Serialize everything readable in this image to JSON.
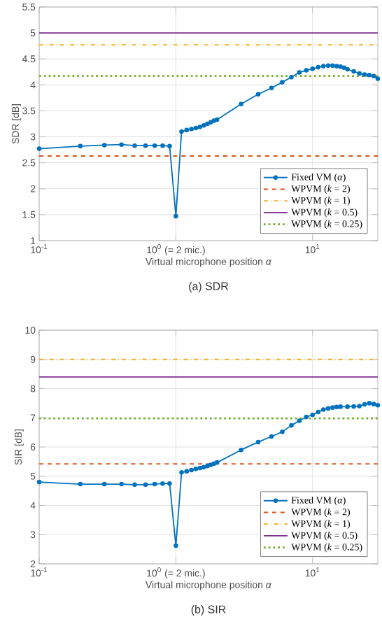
{
  "chart_data": [
    {
      "type": "line",
      "xlabel": "Virtual microphone position *α*",
      "ylabel": "SDR [dB]",
      "annotations": [
        "(a) SDR"
      ],
      "log": "x",
      "grid": true,
      "legend": "bottom right",
      "xlim": [
        0.1,
        30
      ],
      "ylim": [
        1,
        5.5
      ],
      "xticks": [
        {
          "value": 0.1,
          "label": "10$^{-1}$"
        },
        {
          "value": 1,
          "label": "10$^{0}$ (= 2 mic.)"
        },
        {
          "value": 10,
          "label": "10$^{1}$"
        }
      ],
      "yticks": [
        1,
        1.5,
        2,
        2.5,
        3,
        3.5,
        4,
        4.5,
        5,
        5.5
      ],
      "series": [
        {
          "name": "Fixed VM (*α*)",
          "color": "#0072bd",
          "marker": "circle",
          "line_style": "solid",
          "x": [
            0.1,
            0.2,
            0.3,
            0.4,
            0.5,
            0.6,
            0.7,
            0.8,
            0.9,
            1.0,
            1.1,
            1.2,
            1.3,
            1.4,
            1.5,
            1.6,
            1.7,
            1.8,
            1.9,
            2.0,
            3,
            4,
            5,
            6,
            7,
            8,
            9,
            10,
            11,
            12,
            13,
            14,
            15,
            16,
            17,
            18,
            20,
            22,
            24,
            26,
            28,
            30
          ],
          "values": [
            2.77,
            2.82,
            2.84,
            2.85,
            2.83,
            2.83,
            2.83,
            2.83,
            2.82,
            1.47,
            3.1,
            3.13,
            3.15,
            3.17,
            3.19,
            3.22,
            3.25,
            3.28,
            3.31,
            3.33,
            3.63,
            3.82,
            3.94,
            4.05,
            4.15,
            4.24,
            4.28,
            4.31,
            4.34,
            4.36,
            4.37,
            4.37,
            4.36,
            4.35,
            4.33,
            4.3,
            4.26,
            4.22,
            4.2,
            4.19,
            4.17,
            4.12
          ]
        },
        {
          "name": "WPVM (*k* = 2)",
          "color": "#d95319",
          "marker": "none",
          "line_style": "dashed",
          "x": [
            0.1,
            30
          ],
          "values": [
            2.63,
            2.63
          ]
        },
        {
          "name": "WPVM (*k* = 1)",
          "color": "#edb120",
          "marker": "none",
          "line_style": "dashdot",
          "x": [
            0.1,
            30
          ],
          "values": [
            4.77,
            4.77
          ]
        },
        {
          "name": "WPVM (*k* = 0.5)",
          "color": "#7e2f8e",
          "marker": "none",
          "line_style": "solid",
          "x": [
            0.1,
            30
          ],
          "values": [
            5.0,
            5.0
          ]
        },
        {
          "name": "WPVM (*k* = 0.25)",
          "color": "#77ac30",
          "marker": "none",
          "line_style": "dotted",
          "x": [
            0.1,
            30
          ],
          "values": [
            4.17,
            4.17
          ]
        }
      ]
    },
    {
      "type": "line",
      "xlabel": "Virtual microphone position *α*",
      "ylabel": "SIR [dB]",
      "annotations": [
        "(b) SIR"
      ],
      "log": "x",
      "grid": true,
      "legend": "bottom right",
      "xlim": [
        0.1,
        30
      ],
      "ylim": [
        2,
        10
      ],
      "xticks": [
        {
          "value": 0.1,
          "label": "10$^{-1}$"
        },
        {
          "value": 1,
          "label": "10$^{0}$ (= 2 mic.)"
        },
        {
          "value": 10,
          "label": "10$^{1}$"
        }
      ],
      "yticks": [
        2,
        3,
        4,
        5,
        6,
        7,
        8,
        9,
        10
      ],
      "series": [
        {
          "name": "Fixed VM (*α*)",
          "color": "#0072bd",
          "marker": "circle",
          "line_style": "solid",
          "x": [
            0.1,
            0.2,
            0.3,
            0.4,
            0.5,
            0.6,
            0.7,
            0.8,
            0.9,
            1.0,
            1.1,
            1.2,
            1.3,
            1.4,
            1.5,
            1.6,
            1.7,
            1.8,
            1.9,
            2.0,
            3,
            4,
            5,
            6,
            7,
            8,
            9,
            10,
            11,
            12,
            13,
            14,
            15,
            16,
            18,
            20,
            22,
            24,
            26,
            28,
            30
          ],
          "values": [
            4.8,
            4.73,
            4.73,
            4.73,
            4.71,
            4.71,
            4.73,
            4.75,
            4.75,
            2.62,
            5.13,
            5.17,
            5.21,
            5.25,
            5.28,
            5.31,
            5.35,
            5.39,
            5.43,
            5.47,
            5.9,
            6.17,
            6.36,
            6.52,
            6.74,
            6.9,
            7.03,
            7.1,
            7.2,
            7.28,
            7.32,
            7.35,
            7.37,
            7.38,
            7.38,
            7.39,
            7.4,
            7.46,
            7.5,
            7.47,
            7.43
          ]
        },
        {
          "name": "WPVM (*k* = 2)",
          "color": "#d95319",
          "marker": "none",
          "line_style": "dashed",
          "x": [
            0.1,
            30
          ],
          "values": [
            5.42,
            5.42
          ]
        },
        {
          "name": "WPVM (*k* = 1)",
          "color": "#edb120",
          "marker": "none",
          "line_style": "dashdot",
          "x": [
            0.1,
            30
          ],
          "values": [
            9.0,
            9.0
          ]
        },
        {
          "name": "WPVM (*k* = 0.5)",
          "color": "#7e2f8e",
          "marker": "none",
          "line_style": "solid",
          "x": [
            0.1,
            30
          ],
          "values": [
            8.4,
            8.4
          ]
        },
        {
          "name": "WPVM (*k* = 0.25)",
          "color": "#77ac30",
          "marker": "none",
          "line_style": "dotted",
          "x": [
            0.1,
            30
          ],
          "values": [
            6.98,
            6.98
          ]
        }
      ]
    }
  ]
}
